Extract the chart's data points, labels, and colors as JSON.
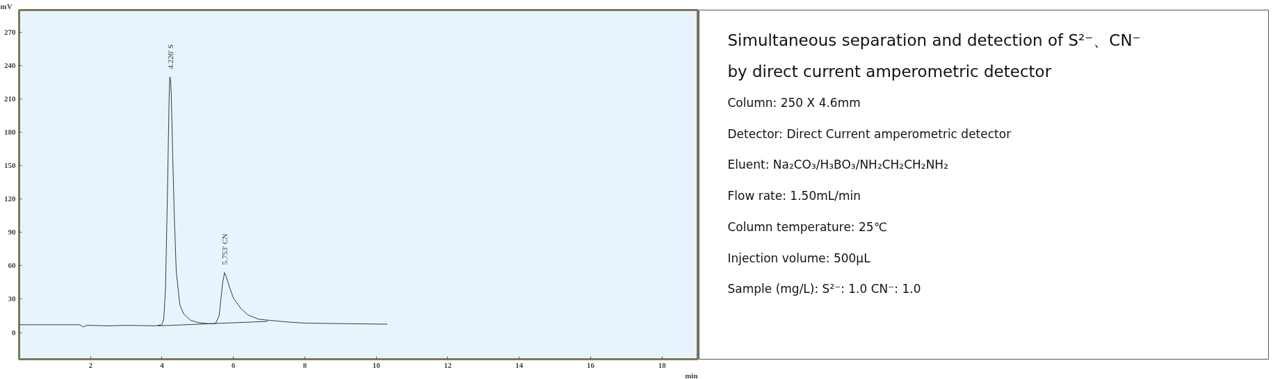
{
  "chart_data": [
    {
      "type": "line",
      "xlabel": "min",
      "ylabel": "mV",
      "x": [
        0,
        1.7,
        1.8,
        1.9,
        2.5,
        3,
        3.8,
        4.0,
        4.05,
        4.1,
        4.15,
        4.2,
        4.215,
        4.226,
        4.237,
        4.26,
        4.3,
        4.35,
        4.4,
        4.5,
        4.6,
        4.8,
        5.0,
        5.3,
        5.5,
        5.6,
        5.65,
        5.7,
        5.753,
        5.8,
        5.9,
        6.0,
        6.2,
        6.4,
        6.7,
        7,
        7.5,
        8,
        9,
        10.3
      ],
      "series": [
        {
          "color": "#3a3a3a",
          "values": [
            7,
            7,
            5,
            6.5,
            6,
            6.5,
            6,
            7,
            12,
            40,
            120,
            210,
            228,
            230,
            228,
            215,
            160,
            100,
            55,
            25,
            17,
            11,
            9,
            8,
            8,
            15,
            30,
            45,
            54,
            50,
            40,
            31,
            22,
            16,
            12,
            11,
            9.5,
            8.5,
            8,
            7.5
          ]
        },
        {
          "color": "#3a3a3a",
          "x": [
            3.9,
            5.4,
            6.95
          ],
          "values": [
            6,
            8,
            10
          ]
        }
      ],
      "annotations": [
        {
          "text": "4.226' S",
          "x": 4.226,
          "y": 232
        },
        {
          "text": "5.753' CN",
          "x": 5.753,
          "y": 56
        }
      ],
      "xlim": [
        0,
        19
      ],
      "xticks": [
        2,
        4,
        6,
        8,
        10,
        12,
        14,
        16,
        18
      ],
      "ylim": [
        -24,
        290
      ],
      "yticks": [
        0,
        30,
        60,
        90,
        120,
        150,
        180,
        210,
        240,
        270
      ],
      "grid": false,
      "marker": "none",
      "line_style": "solid"
    },
    {
      "type": "other",
      "title": "Simultaneous separation and detection of S²⁻、CN⁻ by direct current amperometric detector",
      "annotations": [
        "Column: 250 X 4.6mm",
        "Detector: Direct Current amperometric detector",
        "Eluent: Na₂CO₃/H₃BO₃/NH₂CH₂CH₂NH₂",
        "Flow rate: 1.50mL/min",
        "Column temperature: 25℃",
        "Injection volume: 500µL",
        "Sample (mg/L): S²⁻: 1.0   CN⁻: 1.0"
      ]
    }
  ]
}
